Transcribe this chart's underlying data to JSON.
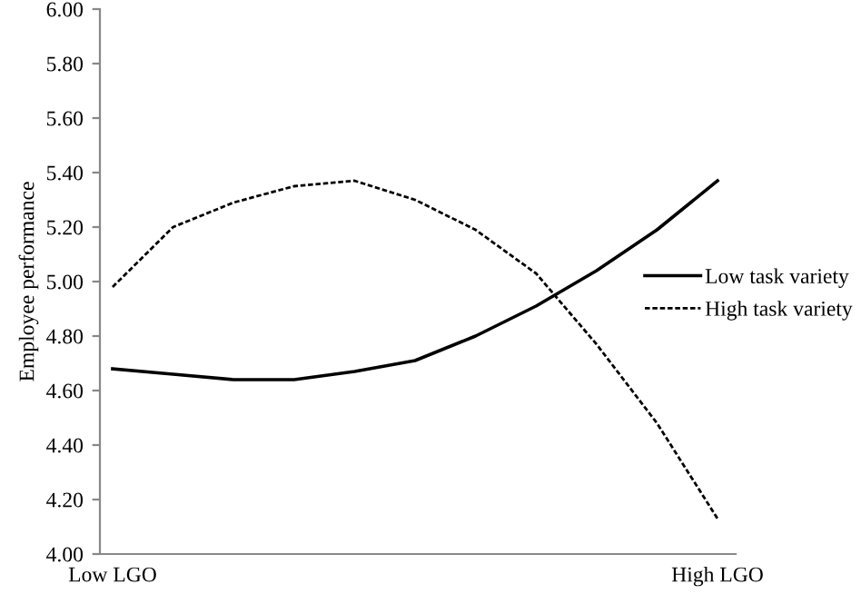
{
  "chart_data": {
    "type": "line",
    "ylabel": "Employee performance",
    "categories": [
      "Low LGO",
      null,
      null,
      null,
      null,
      null,
      null,
      null,
      null,
      null,
      "High LGO"
    ],
    "series": [
      {
        "name": "Low task variety",
        "color": "#000000",
        "line_style": "solid",
        "values": [
          4.68,
          4.66,
          4.64,
          4.64,
          4.67,
          4.71,
          4.8,
          4.91,
          5.04,
          5.19,
          5.37
        ]
      },
      {
        "name": "High task variety",
        "color": "#000000",
        "line_style": "dotted",
        "values": [
          4.98,
          5.2,
          5.29,
          5.35,
          5.37,
          5.3,
          5.19,
          5.03,
          4.77,
          4.48,
          4.13
        ]
      }
    ],
    "ylim": [
      4.0,
      6.0
    ],
    "yticks": [
      {
        "value": 4.0,
        "label": "4.00"
      },
      {
        "value": 4.2,
        "label": "4.20"
      },
      {
        "value": 4.4,
        "label": "4.40"
      },
      {
        "value": 4.6,
        "label": "4.60"
      },
      {
        "value": 4.8,
        "label": "4.80"
      },
      {
        "value": 5.0,
        "label": "5.00"
      },
      {
        "value": 5.2,
        "label": "5.20"
      },
      {
        "value": 5.4,
        "label": "5.40"
      },
      {
        "value": 5.6,
        "label": "5.60"
      },
      {
        "value": 5.8,
        "label": "5.80"
      },
      {
        "value": 6.0,
        "label": "6.00"
      }
    ],
    "grid": false,
    "legend": "right",
    "marker": "none"
  }
}
